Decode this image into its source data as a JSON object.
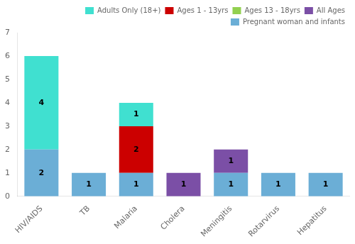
{
  "chart_data": {
    "type": "bar",
    "stacked": true,
    "categories": [
      "HIV/AIDS",
      "TB",
      "Malaria",
      "Cholera",
      "Meningitis",
      "Rotarvirus",
      "Hepatitus"
    ],
    "series": [
      {
        "name": "Pregnant woman and infants",
        "color": "#6BAED6",
        "values": [
          2,
          1,
          1,
          0,
          1,
          1,
          1
        ]
      },
      {
        "name": "All Ages",
        "color": "#7B4FA6",
        "values": [
          0,
          0,
          0,
          1,
          1,
          0,
          0
        ]
      },
      {
        "name": "Ages 13 - 18yrs",
        "color": "#92D050",
        "values": [
          0,
          0,
          0,
          0,
          0,
          0,
          0
        ]
      },
      {
        "name": "Ages 1 - 13yrs",
        "color": "#CC0000",
        "values": [
          0,
          0,
          2,
          0,
          0,
          0,
          0
        ]
      },
      {
        "name": "Adults Only (18+)",
        "color": "#40E0D0",
        "values": [
          4,
          0,
          1,
          0,
          0,
          0,
          0
        ]
      }
    ],
    "ylim": [
      0,
      7
    ],
    "yticks": [
      0,
      1,
      2,
      3,
      4,
      5,
      6,
      7
    ],
    "grid": false,
    "legend": "upper right",
    "data_labels": true
  }
}
